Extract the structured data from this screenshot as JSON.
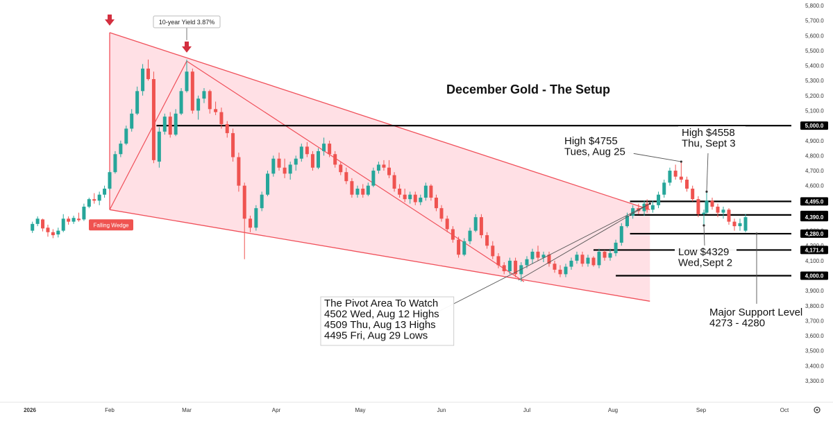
{
  "chart_data": {
    "type": "candlestick",
    "title": "December Gold - The Setup",
    "x_ticks": [
      "2026",
      "Feb",
      "Mar",
      "Apr",
      "May",
      "Jun",
      "Jul",
      "Aug",
      "Sep",
      "Oct"
    ],
    "y_ticks": [
      "5,800.0",
      "5,700.0",
      "5,600.0",
      "5,500.0",
      "5,400.0",
      "5,300.0",
      "5,200.0",
      "5,100.0",
      "5,000.0",
      "4,900.0",
      "4,800.0",
      "4,700.0",
      "4,600.0",
      "4,500.0",
      "4,400.0",
      "4,300.0",
      "4,200.0",
      "4,100.0",
      "4,000.0",
      "3,900.0",
      "3,800.0",
      "3,700.0",
      "3,600.0",
      "3,500.0",
      "3,400.0",
      "3,300.0"
    ],
    "ylim": [
      3230,
      5830
    ],
    "colors": {
      "up": "#26a69a",
      "down": "#ef5350",
      "wedge_fill": "#ffd6dc",
      "wedge_line": "#f0505a",
      "level_line": "#000000",
      "tag_bg": "#000000",
      "tag_text": "#ffffff",
      "badge_bg": "#ef5350",
      "marker": "#d32f3f",
      "thin_line": "#555555"
    },
    "price_levels": [
      {
        "label": "5,000.0",
        "value": 5000.0,
        "x_start": "Feb 18"
      },
      {
        "label": "4,495.0",
        "value": 4495.0,
        "x_start": "Aug 7"
      },
      {
        "label": "4,404.9",
        "value": 4404.9,
        "x_start": "Aug 7"
      },
      {
        "label": "4,280.0",
        "value": 4280.0,
        "x_start": "Aug 7"
      },
      {
        "label": "4,171.4",
        "value": 4171.4,
        "x_start": "Jul 25"
      },
      {
        "label": "4,000.0",
        "value": 4000.0,
        "x_start": "Aug 2"
      }
    ],
    "current_price_tag": {
      "label": "4,390.0",
      "value": 4390.0
    },
    "falling_wedge": {
      "label": "Falling Wedge",
      "upper_line": [
        [
          "Feb 1",
          5620
        ],
        [
          "Aug 14",
          4440
        ]
      ],
      "lower_line": [
        [
          "Feb 1",
          4440
        ],
        [
          "Aug 14",
          3830
        ]
      ],
      "inner_lines": [
        [
          [
            "Feb 1",
            4440
          ],
          [
            "Mar 1",
            5430
          ]
        ],
        [
          [
            "Mar 1",
            5430
          ],
          [
            "Jun 30",
            3960
          ]
        ]
      ]
    },
    "top_markers": [
      {
        "x": "Feb 1",
        "value": 5620
      },
      {
        "x": "Mar 1",
        "value": 5440,
        "label": "10-year Yield 3.87%"
      }
    ],
    "annotations": [
      {
        "lines": [
          "High $4755",
          "Tues, Aug 25"
        ],
        "points_to": [
          "Aug 25",
          4760
        ]
      },
      {
        "lines": [
          "High $4558",
          "Thu, Sept 3"
        ],
        "points_to": [
          "Sep 3",
          4560
        ]
      },
      {
        "lines": [
          "Low $4329",
          "Wed,Sept 2"
        ],
        "points_to": [
          "Sep 2",
          4335
        ]
      },
      {
        "lines": [
          "Major Support Level",
          "4273 - 4280"
        ],
        "points_to": [
          "Sep 21",
          4280
        ]
      },
      {
        "lines": [
          "The Pivot Area To Watch",
          "4502 Wed, Aug 12 Highs",
          "4509 Thu, Aug 13 Highs",
          "4495  Fri, Aug 29 Lows"
        ],
        "points_to": [
          "Aug 14",
          4480
        ],
        "trendline_from": [
          "Jun 28",
          3970
        ]
      }
    ],
    "candles": [
      {
        "x": "Jan 2",
        "o": 4300,
        "h": 4360,
        "l": 4285,
        "c": 4345
      },
      {
        "x": "Jan 4",
        "o": 4345,
        "h": 4395,
        "l": 4330,
        "c": 4380
      },
      {
        "x": "Jan 6",
        "o": 4375,
        "h": 4380,
        "l": 4295,
        "c": 4315
      },
      {
        "x": "Jan 8",
        "o": 4320,
        "h": 4340,
        "l": 4260,
        "c": 4290
      },
      {
        "x": "Jan 10",
        "o": 4290,
        "h": 4310,
        "l": 4250,
        "c": 4270
      },
      {
        "x": "Jan 12",
        "o": 4275,
        "h": 4320,
        "l": 4255,
        "c": 4300
      },
      {
        "x": "Jan 14",
        "o": 4300,
        "h": 4410,
        "l": 4290,
        "c": 4380
      },
      {
        "x": "Jan 16",
        "o": 4380,
        "h": 4395,
        "l": 4340,
        "c": 4360
      },
      {
        "x": "Jan 18",
        "o": 4360,
        "h": 4400,
        "l": 4345,
        "c": 4385
      },
      {
        "x": "Jan 20",
        "o": 4380,
        "h": 4420,
        "l": 4360,
        "c": 4370
      },
      {
        "x": "Jan 22",
        "o": 4375,
        "h": 4480,
        "l": 4365,
        "c": 4460
      },
      {
        "x": "Jan 24",
        "o": 4460,
        "h": 4520,
        "l": 4450,
        "c": 4510
      },
      {
        "x": "Jan 26",
        "o": 4510,
        "h": 4550,
        "l": 4480,
        "c": 4500
      },
      {
        "x": "Jan 28",
        "o": 4500,
        "h": 4560,
        "l": 4470,
        "c": 4540
      },
      {
        "x": "Jan 30",
        "o": 4540,
        "h": 4600,
        "l": 4520,
        "c": 4580
      },
      {
        "x": "Feb 1",
        "o": 4580,
        "h": 4700,
        "l": 4570,
        "c": 4690
      },
      {
        "x": "Feb 3",
        "o": 4690,
        "h": 4830,
        "l": 4680,
        "c": 4810
      },
      {
        "x": "Feb 5",
        "o": 4810,
        "h": 4900,
        "l": 4790,
        "c": 4880
      },
      {
        "x": "Feb 7",
        "o": 4880,
        "h": 5000,
        "l": 4870,
        "c": 4980
      },
      {
        "x": "Feb 9",
        "o": 4980,
        "h": 5110,
        "l": 4960,
        "c": 5080
      },
      {
        "x": "Feb 11",
        "o": 5080,
        "h": 5260,
        "l": 5070,
        "c": 5230
      },
      {
        "x": "Feb 13",
        "o": 5230,
        "h": 5410,
        "l": 5200,
        "c": 5380
      },
      {
        "x": "Feb 15",
        "o": 5380,
        "h": 5440,
        "l": 5300,
        "c": 5310
      },
      {
        "x": "Feb 17",
        "o": 5310,
        "h": 5360,
        "l": 4750,
        "c": 4770
      },
      {
        "x": "Feb 19",
        "o": 4760,
        "h": 4990,
        "l": 4720,
        "c": 4960
      },
      {
        "x": "Feb 21",
        "o": 4960,
        "h": 5080,
        "l": 4940,
        "c": 5060
      },
      {
        "x": "Feb 23",
        "o": 5060,
        "h": 5090,
        "l": 4920,
        "c": 4940
      },
      {
        "x": "Feb 25",
        "o": 4940,
        "h": 5110,
        "l": 4930,
        "c": 5080
      },
      {
        "x": "Feb 27",
        "o": 5080,
        "h": 5250,
        "l": 5070,
        "c": 5230
      },
      {
        "x": "Mar 1",
        "o": 5230,
        "h": 5440,
        "l": 5220,
        "c": 5360
      },
      {
        "x": "Mar 3",
        "o": 5360,
        "h": 5380,
        "l": 5080,
        "c": 5100
      },
      {
        "x": "Mar 5",
        "o": 5100,
        "h": 5200,
        "l": 5040,
        "c": 5180
      },
      {
        "x": "Mar 7",
        "o": 5180,
        "h": 5250,
        "l": 5150,
        "c": 5230
      },
      {
        "x": "Mar 9",
        "o": 5230,
        "h": 5240,
        "l": 5080,
        "c": 5110
      },
      {
        "x": "Mar 11",
        "o": 5110,
        "h": 5160,
        "l": 5070,
        "c": 5090
      },
      {
        "x": "Mar 13",
        "o": 5090,
        "h": 5120,
        "l": 4980,
        "c": 5010
      },
      {
        "x": "Mar 15",
        "o": 5010,
        "h": 5030,
        "l": 4920,
        "c": 4950
      },
      {
        "x": "Mar 17",
        "o": 4950,
        "h": 4980,
        "l": 4760,
        "c": 4790
      },
      {
        "x": "Mar 19",
        "o": 4790,
        "h": 4820,
        "l": 4560,
        "c": 4600
      },
      {
        "x": "Mar 21",
        "o": 4600,
        "h": 4620,
        "l": 4110,
        "c": 4380
      },
      {
        "x": "Mar 23",
        "o": 4380,
        "h": 4400,
        "l": 4290,
        "c": 4320
      },
      {
        "x": "Mar 25",
        "o": 4320,
        "h": 4470,
        "l": 4300,
        "c": 4450
      },
      {
        "x": "Mar 27",
        "o": 4450,
        "h": 4560,
        "l": 4430,
        "c": 4540
      },
      {
        "x": "Mar 29",
        "o": 4540,
        "h": 4700,
        "l": 4530,
        "c": 4680
      },
      {
        "x": "Mar 31",
        "o": 4680,
        "h": 4800,
        "l": 4660,
        "c": 4780
      },
      {
        "x": "Apr 2",
        "o": 4780,
        "h": 4820,
        "l": 4700,
        "c": 4720
      },
      {
        "x": "Apr 4",
        "o": 4720,
        "h": 4780,
        "l": 4650,
        "c": 4680
      },
      {
        "x": "Apr 6",
        "o": 4680,
        "h": 4760,
        "l": 4640,
        "c": 4740
      },
      {
        "x": "Apr 8",
        "o": 4740,
        "h": 4800,
        "l": 4700,
        "c": 4780
      },
      {
        "x": "Apr 10",
        "o": 4780,
        "h": 4880,
        "l": 4760,
        "c": 4860
      },
      {
        "x": "Apr 12",
        "o": 4860,
        "h": 4890,
        "l": 4790,
        "c": 4810
      },
      {
        "x": "Apr 14",
        "o": 4810,
        "h": 4830,
        "l": 4700,
        "c": 4720
      },
      {
        "x": "Apr 16",
        "o": 4720,
        "h": 4850,
        "l": 4710,
        "c": 4830
      },
      {
        "x": "Apr 18",
        "o": 4830,
        "h": 4920,
        "l": 4800,
        "c": 4880
      },
      {
        "x": "Apr 20",
        "o": 4880,
        "h": 4900,
        "l": 4790,
        "c": 4810
      },
      {
        "x": "Apr 22",
        "o": 4810,
        "h": 4830,
        "l": 4720,
        "c": 4740
      },
      {
        "x": "Apr 24",
        "o": 4740,
        "h": 4760,
        "l": 4670,
        "c": 4690
      },
      {
        "x": "Apr 26",
        "o": 4690,
        "h": 4720,
        "l": 4610,
        "c": 4630
      },
      {
        "x": "Apr 28",
        "o": 4630,
        "h": 4650,
        "l": 4520,
        "c": 4540
      },
      {
        "x": "Apr 30",
        "o": 4540,
        "h": 4600,
        "l": 4520,
        "c": 4580
      },
      {
        "x": "May 2",
        "o": 4580,
        "h": 4610,
        "l": 4520,
        "c": 4540
      },
      {
        "x": "May 4",
        "o": 4540,
        "h": 4620,
        "l": 4530,
        "c": 4600
      },
      {
        "x": "May 6",
        "o": 4600,
        "h": 4720,
        "l": 4590,
        "c": 4700
      },
      {
        "x": "May 8",
        "o": 4700,
        "h": 4760,
        "l": 4680,
        "c": 4740
      },
      {
        "x": "May 10",
        "o": 4740,
        "h": 4770,
        "l": 4700,
        "c": 4720
      },
      {
        "x": "May 12",
        "o": 4720,
        "h": 4770,
        "l": 4650,
        "c": 4670
      },
      {
        "x": "May 14",
        "o": 4670,
        "h": 4690,
        "l": 4560,
        "c": 4580
      },
      {
        "x": "May 16",
        "o": 4580,
        "h": 4610,
        "l": 4520,
        "c": 4540
      },
      {
        "x": "May 18",
        "o": 4540,
        "h": 4580,
        "l": 4490,
        "c": 4510
      },
      {
        "x": "May 20",
        "o": 4510,
        "h": 4560,
        "l": 4480,
        "c": 4540
      },
      {
        "x": "May 22",
        "o": 4540,
        "h": 4560,
        "l": 4470,
        "c": 4490
      },
      {
        "x": "May 24",
        "o": 4490,
        "h": 4540,
        "l": 4470,
        "c": 4520
      },
      {
        "x": "May 26",
        "o": 4520,
        "h": 4620,
        "l": 4500,
        "c": 4600
      },
      {
        "x": "May 28",
        "o": 4600,
        "h": 4610,
        "l": 4500,
        "c": 4520
      },
      {
        "x": "May 30",
        "o": 4520,
        "h": 4540,
        "l": 4430,
        "c": 4450
      },
      {
        "x": "Jun 1",
        "o": 4450,
        "h": 4470,
        "l": 4360,
        "c": 4380
      },
      {
        "x": "Jun 3",
        "o": 4380,
        "h": 4400,
        "l": 4290,
        "c": 4310
      },
      {
        "x": "Jun 5",
        "o": 4310,
        "h": 4330,
        "l": 4220,
        "c": 4240
      },
      {
        "x": "Jun 7",
        "o": 4240,
        "h": 4260,
        "l": 4120,
        "c": 4140
      },
      {
        "x": "Jun 9",
        "o": 4140,
        "h": 4250,
        "l": 4130,
        "c": 4230
      },
      {
        "x": "Jun 11",
        "o": 4230,
        "h": 4320,
        "l": 4210,
        "c": 4300
      },
      {
        "x": "Jun 13",
        "o": 4300,
        "h": 4410,
        "l": 4290,
        "c": 4390
      },
      {
        "x": "Jun 15",
        "o": 4390,
        "h": 4410,
        "l": 4250,
        "c": 4270
      },
      {
        "x": "Jun 17",
        "o": 4270,
        "h": 4290,
        "l": 4180,
        "c": 4200
      },
      {
        "x": "Jun 19",
        "o": 4200,
        "h": 4230,
        "l": 4110,
        "c": 4130
      },
      {
        "x": "Jun 21",
        "o": 4130,
        "h": 4150,
        "l": 4050,
        "c": 4070
      },
      {
        "x": "Jun 23",
        "o": 4070,
        "h": 4090,
        "l": 4010,
        "c": 4030
      },
      {
        "x": "Jun 25",
        "o": 4030,
        "h": 4120,
        "l": 4010,
        "c": 4100
      },
      {
        "x": "Jun 27",
        "o": 4100,
        "h": 4120,
        "l": 3990,
        "c": 4010
      },
      {
        "x": "Jun 29",
        "o": 4010,
        "h": 4090,
        "l": 3960,
        "c": 4070
      },
      {
        "x": "Jul 1",
        "o": 4070,
        "h": 4130,
        "l": 4050,
        "c": 4110
      },
      {
        "x": "Jul 3",
        "o": 4110,
        "h": 4180,
        "l": 4080,
        "c": 4160
      },
      {
        "x": "Jul 5",
        "o": 4160,
        "h": 4200,
        "l": 4100,
        "c": 4120
      },
      {
        "x": "Jul 7",
        "o": 4120,
        "h": 4160,
        "l": 4090,
        "c": 4140
      },
      {
        "x": "Jul 9",
        "o": 4140,
        "h": 4160,
        "l": 4060,
        "c": 4080
      },
      {
        "x": "Jul 11",
        "o": 4080,
        "h": 4100,
        "l": 4020,
        "c": 4040
      },
      {
        "x": "Jul 13",
        "o": 4040,
        "h": 4070,
        "l": 3990,
        "c": 4010
      },
      {
        "x": "Jul 15",
        "o": 4010,
        "h": 4080,
        "l": 3990,
        "c": 4060
      },
      {
        "x": "Jul 17",
        "o": 4060,
        "h": 4120,
        "l": 4040,
        "c": 4100
      },
      {
        "x": "Jul 19",
        "o": 4100,
        "h": 4160,
        "l": 4080,
        "c": 4140
      },
      {
        "x": "Jul 21",
        "o": 4140,
        "h": 4160,
        "l": 4060,
        "c": 4080
      },
      {
        "x": "Jul 23",
        "o": 4080,
        "h": 4140,
        "l": 4060,
        "c": 4120
      },
      {
        "x": "Jul 25",
        "o": 4120,
        "h": 4130,
        "l": 4060,
        "c": 4070
      },
      {
        "x": "Jul 27",
        "o": 4070,
        "h": 4180,
        "l": 4050,
        "c": 4160
      },
      {
        "x": "Jul 29",
        "o": 4160,
        "h": 4170,
        "l": 4100,
        "c": 4120
      },
      {
        "x": "Jul 31",
        "o": 4120,
        "h": 4180,
        "l": 4100,
        "c": 4150
      },
      {
        "x": "Aug 2",
        "o": 4150,
        "h": 4240,
        "l": 4130,
        "c": 4220
      },
      {
        "x": "Aug 4",
        "o": 4220,
        "h": 4350,
        "l": 4200,
        "c": 4330
      },
      {
        "x": "Aug 6",
        "o": 4330,
        "h": 4420,
        "l": 4320,
        "c": 4400
      },
      {
        "x": "Aug 8",
        "o": 4400,
        "h": 4470,
        "l": 4380,
        "c": 4450
      },
      {
        "x": "Aug 10",
        "o": 4450,
        "h": 4480,
        "l": 4410,
        "c": 4430
      },
      {
        "x": "Aug 12",
        "o": 4430,
        "h": 4502,
        "l": 4400,
        "c": 4480
      },
      {
        "x": "Aug 13",
        "o": 4480,
        "h": 4509,
        "l": 4420,
        "c": 4440
      },
      {
        "x": "Aug 15",
        "o": 4440,
        "h": 4500,
        "l": 4420,
        "c": 4470
      },
      {
        "x": "Aug 17",
        "o": 4470,
        "h": 4560,
        "l": 4450,
        "c": 4540
      },
      {
        "x": "Aug 19",
        "o": 4540,
        "h": 4640,
        "l": 4520,
        "c": 4620
      },
      {
        "x": "Aug 21",
        "o": 4620,
        "h": 4720,
        "l": 4600,
        "c": 4700
      },
      {
        "x": "Aug 23",
        "o": 4700,
        "h": 4740,
        "l": 4640,
        "c": 4660
      },
      {
        "x": "Aug 25",
        "o": 4660,
        "h": 4755,
        "l": 4620,
        "c": 4640
      },
      {
        "x": "Aug 27",
        "o": 4640,
        "h": 4660,
        "l": 4560,
        "c": 4580
      },
      {
        "x": "Aug 29",
        "o": 4580,
        "h": 4600,
        "l": 4495,
        "c": 4510
      },
      {
        "x": "Aug 31",
        "o": 4510,
        "h": 4530,
        "l": 4390,
        "c": 4410
      },
      {
        "x": "Sep 2",
        "o": 4410,
        "h": 4440,
        "l": 4329,
        "c": 4420
      },
      {
        "x": "Sep 3",
        "o": 4420,
        "h": 4558,
        "l": 4410,
        "c": 4500
      },
      {
        "x": "Sep 5",
        "o": 4500,
        "h": 4520,
        "l": 4440,
        "c": 4460
      },
      {
        "x": "Sep 7",
        "o": 4460,
        "h": 4480,
        "l": 4390,
        "c": 4420
      },
      {
        "x": "Sep 9",
        "o": 4420,
        "h": 4460,
        "l": 4380,
        "c": 4440
      },
      {
        "x": "Sep 11",
        "o": 4440,
        "h": 4450,
        "l": 4340,
        "c": 4360
      },
      {
        "x": "Sep 13",
        "o": 4360,
        "h": 4380,
        "l": 4300,
        "c": 4330
      },
      {
        "x": "Sep 15",
        "o": 4330,
        "h": 4380,
        "l": 4300,
        "c": 4350
      },
      {
        "x": "Sep 17",
        "o": 4300,
        "h": 4410,
        "l": 4290,
        "c": 4390
      }
    ]
  }
}
